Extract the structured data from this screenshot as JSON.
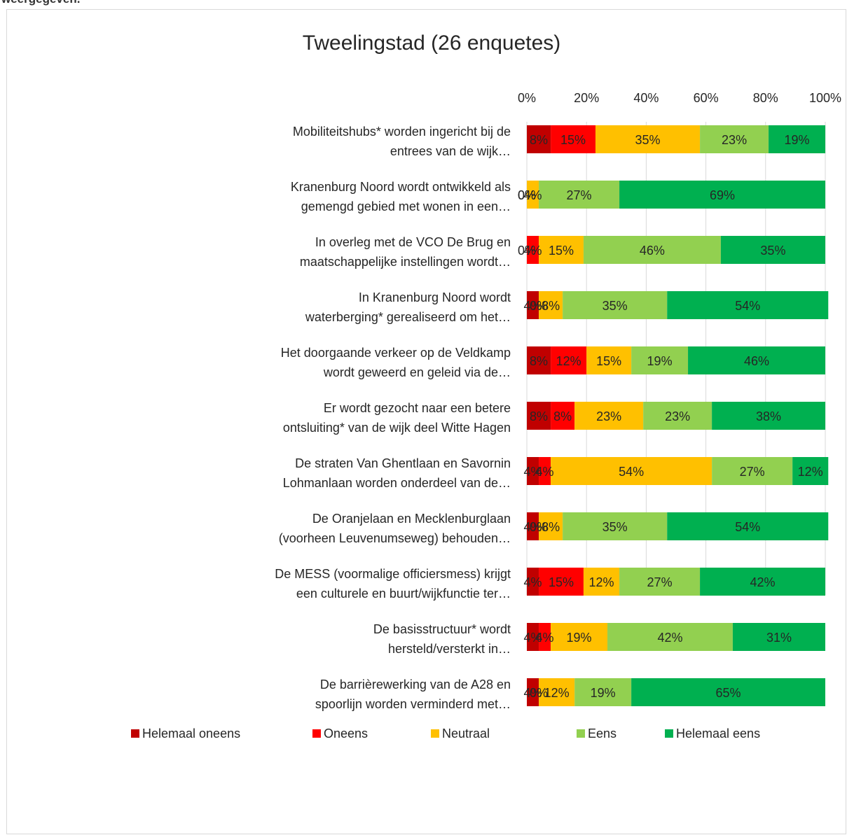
{
  "caption": "weergegeven.",
  "chart_data": {
    "type": "bar",
    "orientation": "horizontal",
    "stacked": "percent",
    "title": "Tweelingstad (26 enquetes)",
    "xlabel": "",
    "ylabel": "",
    "xlim": [
      0,
      100
    ],
    "x_ticks": [
      "0%",
      "20%",
      "40%",
      "60%",
      "80%",
      "100%"
    ],
    "x_axis_position": "top",
    "grid": true,
    "legend_position": "bottom",
    "categories": [
      [
        "Mobiliteitshubs* worden ingericht bij de",
        "entrees van de wijk…"
      ],
      [
        "Kranenburg Noord wordt ontwikkeld als",
        "gemengd gebied met wonen in een…"
      ],
      [
        "In overleg met de VCO De Brug en",
        "maatschappelijke instellingen wordt…"
      ],
      [
        "In Kranenburg Noord wordt",
        "waterberging* gerealiseerd om het…"
      ],
      [
        "Het doorgaande verkeer op de Veldkamp",
        "wordt geweerd en geleid via de…"
      ],
      [
        "Er wordt gezocht naar een betere",
        "ontsluiting* van de wijk deel Witte Hagen"
      ],
      [
        "De straten Van Ghentlaan en Savornin",
        "Lohmanlaan worden onderdeel van de…"
      ],
      [
        "De Oranjelaan en Mecklenburglaan",
        "(voorheen Leuvenumseweg) behouden…"
      ],
      [
        "De MESS (voormalige officiersmess) krijgt",
        "een culturele en buurt/wijkfunctie ter…"
      ],
      [
        "De basisstructuur* wordt",
        "hersteld/versterkt in…"
      ],
      [
        "De barrièrewerking van de A28 en",
        "spoorlijn worden verminderd met…"
      ]
    ],
    "series": [
      {
        "name": "Helemaal oneens",
        "color": "#C00000",
        "values": [
          8,
          0,
          0,
          4,
          8,
          8,
          4,
          4,
          4,
          4,
          4
        ]
      },
      {
        "name": "Oneens",
        "color": "#FF0000",
        "values": [
          15,
          0,
          4,
          0,
          12,
          8,
          4,
          0,
          15,
          4,
          0
        ]
      },
      {
        "name": "Neutraal",
        "color": "#FFC000",
        "values": [
          35,
          4,
          15,
          8,
          15,
          23,
          54,
          8,
          12,
          19,
          12
        ]
      },
      {
        "name": "Eens",
        "color": "#92D050",
        "values": [
          23,
          27,
          46,
          35,
          19,
          23,
          27,
          35,
          27,
          42,
          19
        ]
      },
      {
        "name": "Helemaal eens",
        "color": "#00B050",
        "values": [
          19,
          69,
          35,
          54,
          46,
          38,
          12,
          54,
          42,
          31,
          65
        ]
      }
    ]
  }
}
